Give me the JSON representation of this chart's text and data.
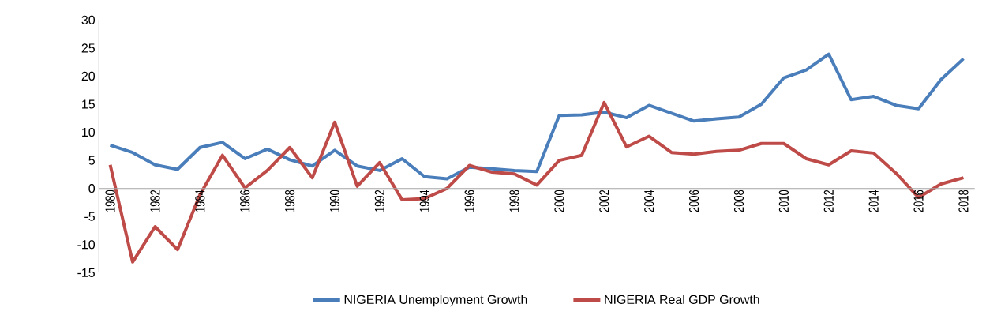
{
  "chart_data": {
    "type": "line",
    "categories": [
      "1980",
      null,
      "1982",
      null,
      "1984",
      null,
      "1986",
      null,
      "1988",
      null,
      "1990",
      null,
      "1992",
      null,
      "1994",
      null,
      "1996",
      null,
      "1998",
      null,
      "2000",
      null,
      "2002",
      null,
      "2004",
      null,
      "2006",
      null,
      "2008",
      null,
      "2010",
      null,
      "2012",
      null,
      "2014",
      null,
      "2016",
      null,
      "2018"
    ],
    "series": [
      {
        "name": "NIGERIA Unemployment Growth",
        "color": "#4a7ebb",
        "values": [
          7.7,
          6.4,
          4.2,
          3.4,
          7.3,
          8.2,
          5.3,
          7.0,
          5.1,
          4.0,
          6.8,
          4.0,
          3.2,
          5.3,
          2.1,
          1.7,
          3.8,
          3.5,
          3.2,
          3.0,
          13.0,
          13.1,
          13.6,
          12.6,
          14.8,
          13.4,
          12.0,
          12.4,
          12.7,
          15.0,
          19.7,
          21.1,
          23.9,
          15.8,
          16.4,
          14.8,
          14.2,
          19.4,
          23.1
        ]
      },
      {
        "name": "NIGERIA Real GDP Growth",
        "color": "#be4b48",
        "values": [
          4.2,
          -13.1,
          -6.8,
          -10.9,
          -1.1,
          5.9,
          0.1,
          3.2,
          7.3,
          1.9,
          11.8,
          0.4,
          4.6,
          -2.0,
          -1.8,
          0.0,
          4.1,
          2.9,
          2.6,
          0.6,
          5.0,
          5.9,
          15.3,
          7.4,
          9.3,
          6.4,
          6.1,
          6.6,
          6.8,
          8.0,
          8.0,
          5.3,
          4.2,
          6.7,
          6.3,
          2.7,
          -1.6,
          0.8,
          1.9
        ]
      }
    ],
    "ylim": [
      -15,
      30
    ],
    "yticks": [
      -15,
      -10,
      -5,
      0,
      5,
      10,
      15,
      20,
      25,
      30
    ],
    "legend": "bottom",
    "marker": "none"
  }
}
